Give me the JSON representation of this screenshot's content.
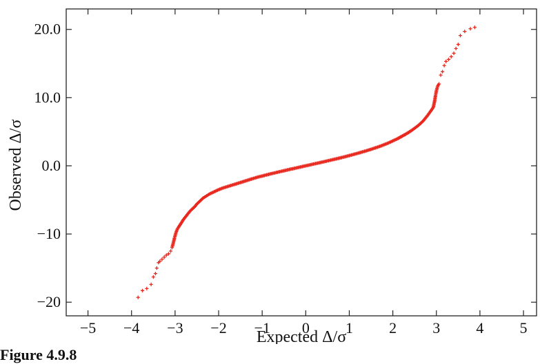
{
  "figure_caption": "Figure 4.9.8",
  "chart_data": {
    "type": "scatter",
    "xlabel": "Expected Δ/σ",
    "ylabel": "Observed Δ/σ",
    "xlim": [
      -5.5,
      5.3
    ],
    "ylim": [
      -22,
      23
    ],
    "x_ticks": [
      -5,
      -4,
      -3,
      -2,
      -1,
      0,
      1,
      2,
      3,
      4,
      5
    ],
    "x_tick_labels": [
      "−5",
      "−4",
      "−3",
      "−2",
      "−1",
      "0",
      "1",
      "2",
      "3",
      "4",
      "5"
    ],
    "y_ticks": [
      -20,
      -10,
      0,
      10,
      20
    ],
    "y_tick_labels": [
      "−20",
      "−10",
      "0.0",
      "10.0",
      "20.0"
    ],
    "grid": false,
    "marker": "+",
    "marker_color": "#e8281e",
    "series": [
      {
        "points": [
          [
            -3.85,
            -19.3
          ],
          [
            -3.75,
            -18.3
          ],
          [
            -3.65,
            -18.0
          ],
          [
            -3.55,
            -17.4
          ],
          [
            -3.5,
            -16.3
          ],
          [
            -3.45,
            -15.8
          ],
          [
            -3.42,
            -15.0
          ],
          [
            -3.38,
            -14.2
          ],
          [
            -3.35,
            -14.0
          ],
          [
            -3.3,
            -13.7
          ],
          [
            -3.25,
            -13.4
          ],
          [
            -3.2,
            -13.1
          ],
          [
            -3.15,
            -12.9
          ],
          [
            -3.1,
            -12.5
          ],
          [
            -3.07,
            -12.0
          ],
          [
            -3.04,
            -11.3
          ],
          [
            -3.01,
            -10.5
          ],
          [
            -2.98,
            -9.8
          ],
          [
            -2.95,
            -9.3
          ],
          [
            -2.92,
            -9.0
          ],
          [
            -2.88,
            -8.6
          ],
          [
            -2.84,
            -8.2
          ],
          [
            -2.8,
            -7.8
          ],
          [
            -2.75,
            -7.4
          ],
          [
            -2.7,
            -7.0
          ],
          [
            -2.65,
            -6.6
          ],
          [
            -2.6,
            -6.3
          ],
          [
            -2.55,
            -6.0
          ],
          [
            -2.5,
            -5.6
          ],
          [
            -2.45,
            -5.3
          ],
          [
            -2.4,
            -5.0
          ],
          [
            -2.35,
            -4.7
          ],
          [
            -2.3,
            -4.5
          ],
          [
            -2.25,
            -4.3
          ],
          [
            -2.2,
            -4.1
          ],
          [
            -2.1,
            -3.8
          ],
          [
            -2.0,
            -3.5
          ],
          [
            -1.9,
            -3.25
          ],
          [
            -1.8,
            -3.05
          ],
          [
            -1.7,
            -2.85
          ],
          [
            -1.6,
            -2.65
          ],
          [
            -1.5,
            -2.45
          ],
          [
            -1.4,
            -2.25
          ],
          [
            -1.3,
            -2.05
          ],
          [
            -1.2,
            -1.85
          ],
          [
            -1.1,
            -1.65
          ],
          [
            -1.0,
            -1.5
          ],
          [
            -0.9,
            -1.33
          ],
          [
            -0.8,
            -1.17
          ],
          [
            -0.7,
            -1.02
          ],
          [
            -0.6,
            -0.87
          ],
          [
            -0.5,
            -0.72
          ],
          [
            -0.4,
            -0.57
          ],
          [
            -0.3,
            -0.43
          ],
          [
            -0.2,
            -0.29
          ],
          [
            -0.1,
            -0.14
          ],
          [
            0.0,
            0.0
          ],
          [
            0.1,
            0.14
          ],
          [
            0.2,
            0.29
          ],
          [
            0.3,
            0.43
          ],
          [
            0.4,
            0.57
          ],
          [
            0.5,
            0.72
          ],
          [
            0.6,
            0.87
          ],
          [
            0.7,
            1.02
          ],
          [
            0.8,
            1.17
          ],
          [
            0.9,
            1.33
          ],
          [
            1.0,
            1.5
          ],
          [
            1.1,
            1.67
          ],
          [
            1.2,
            1.85
          ],
          [
            1.3,
            2.03
          ],
          [
            1.4,
            2.22
          ],
          [
            1.5,
            2.42
          ],
          [
            1.6,
            2.63
          ],
          [
            1.7,
            2.85
          ],
          [
            1.8,
            3.1
          ],
          [
            1.9,
            3.35
          ],
          [
            2.0,
            3.65
          ],
          [
            2.1,
            3.95
          ],
          [
            2.2,
            4.3
          ],
          [
            2.3,
            4.65
          ],
          [
            2.4,
            5.05
          ],
          [
            2.5,
            5.5
          ],
          [
            2.6,
            6.0
          ],
          [
            2.7,
            6.6
          ],
          [
            2.75,
            7.0
          ],
          [
            2.8,
            7.4
          ],
          [
            2.85,
            7.85
          ],
          [
            2.9,
            8.3
          ],
          [
            2.93,
            8.6
          ],
          [
            2.96,
            9.5
          ],
          [
            2.98,
            10.3
          ],
          [
            3.0,
            11.0
          ],
          [
            3.03,
            11.7
          ],
          [
            3.06,
            12.0
          ],
          [
            3.1,
            13.3
          ],
          [
            3.14,
            13.8
          ],
          [
            3.18,
            14.7
          ],
          [
            3.22,
            15.3
          ],
          [
            3.28,
            15.6
          ],
          [
            3.34,
            16.0
          ],
          [
            3.4,
            16.5
          ],
          [
            3.45,
            17.2
          ],
          [
            3.5,
            17.8
          ],
          [
            3.55,
            19.1
          ],
          [
            3.65,
            19.7
          ],
          [
            3.78,
            20.1
          ],
          [
            3.88,
            20.3
          ]
        ]
      }
    ]
  }
}
